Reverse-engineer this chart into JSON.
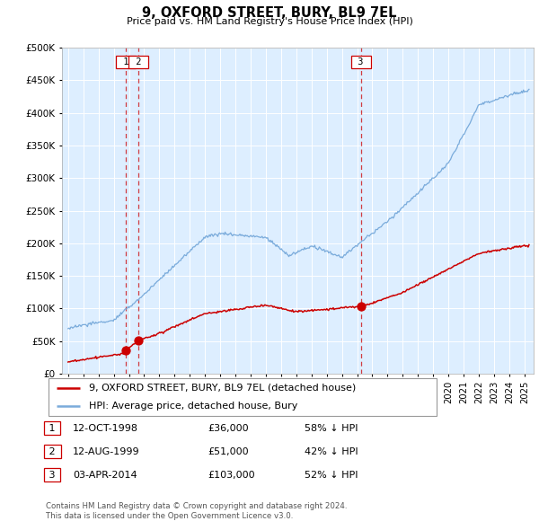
{
  "title": "9, OXFORD STREET, BURY, BL9 7EL",
  "subtitle": "Price paid vs. HM Land Registry's House Price Index (HPI)",
  "legend_line1": "9, OXFORD STREET, BURY, BL9 7EL (detached house)",
  "legend_line2": "HPI: Average price, detached house, Bury",
  "footer1": "Contains HM Land Registry data © Crown copyright and database right 2024.",
  "footer2": "This data is licensed under the Open Government Licence v3.0.",
  "transactions": [
    {
      "num": 1,
      "date": "12-OCT-1998",
      "price": 36000,
      "pct": "58% ↓ HPI",
      "year": 1998.79
    },
    {
      "num": 2,
      "date": "12-AUG-1999",
      "price": 51000,
      "pct": "42% ↓ HPI",
      "year": 1999.62
    },
    {
      "num": 3,
      "date": "03-APR-2014",
      "price": 103000,
      "pct": "52% ↓ HPI",
      "year": 2014.25
    }
  ],
  "red_line_color": "#cc0000",
  "blue_line_color": "#7aabdb",
  "vline_color": "#cc0000",
  "grid_color": "#cccccc",
  "chart_bg_color": "#ddeeff",
  "background_color": "#ffffff",
  "ylim": [
    0,
    500000
  ],
  "yticks": [
    0,
    50000,
    100000,
    150000,
    200000,
    250000,
    300000,
    350000,
    400000,
    450000,
    500000
  ],
  "xlabel_start": 1995,
  "xlabel_end": 2025
}
